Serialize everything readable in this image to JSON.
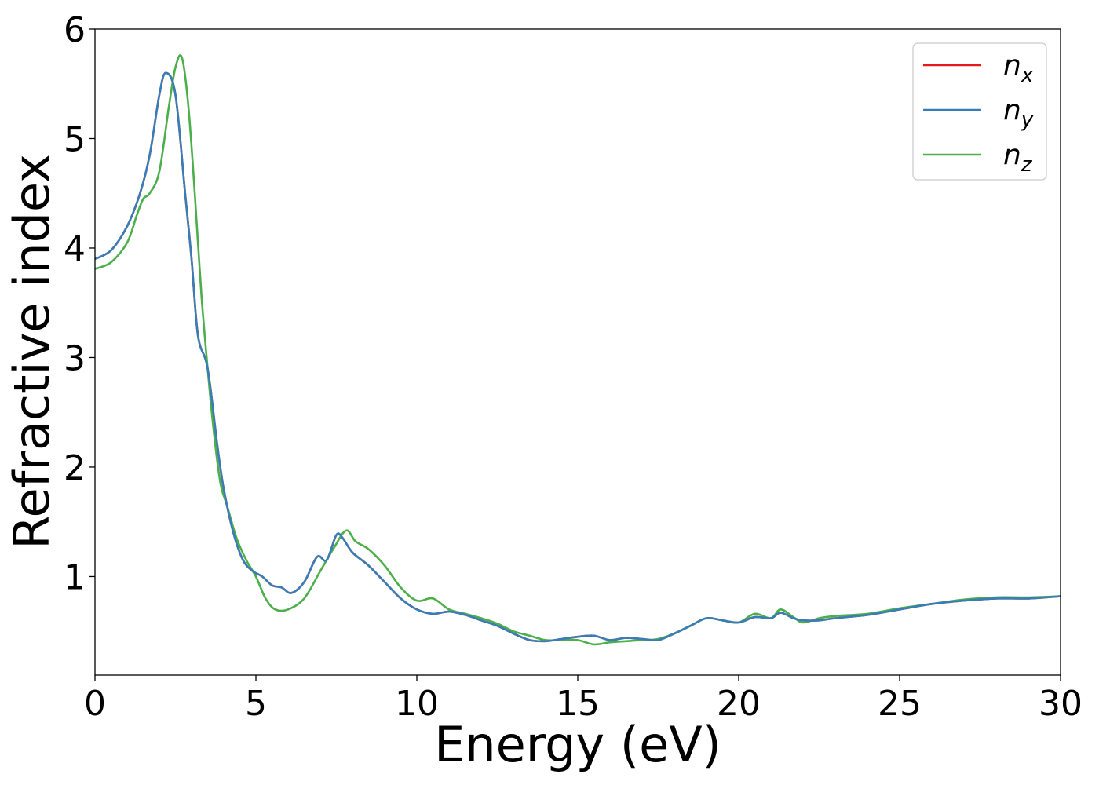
{
  "chart_data": {
    "type": "line",
    "xlabel": "Energy (eV)",
    "ylabel": "Refractive index",
    "xlim": [
      0,
      30
    ],
    "ylim": [
      0.1,
      6
    ],
    "xticks": [
      0,
      5,
      10,
      15,
      20,
      25,
      30
    ],
    "yticks": [
      1,
      2,
      3,
      4,
      5,
      6
    ],
    "grid": false,
    "legend_position": "top-right",
    "series": [
      {
        "name": "n",
        "subscript": "x",
        "color": "#e41a1c",
        "x": [
          0,
          0.5,
          1.0,
          1.4,
          1.7,
          2.0,
          2.2,
          2.5,
          2.8,
          3.0,
          3.2,
          3.5,
          3.8,
          4.0,
          4.3,
          4.6,
          4.9,
          5.2,
          5.5,
          5.8,
          6.1,
          6.5,
          6.9,
          7.2,
          7.5,
          7.7,
          8.0,
          8.5,
          9.0,
          9.5,
          10.0,
          10.5,
          11.0,
          11.5,
          12.0,
          12.5,
          13.0,
          13.5,
          14.0,
          14.5,
          15.0,
          15.5,
          16.0,
          16.5,
          17.0,
          17.5,
          18.0,
          18.5,
          19.0,
          19.5,
          20.0,
          20.5,
          21.0,
          21.3,
          21.7,
          22.0,
          22.5,
          23.0,
          24.0,
          25.0,
          26.0,
          27.0,
          28.0,
          29.0,
          30.0
        ],
        "y": [
          3.9,
          3.98,
          4.2,
          4.5,
          4.85,
          5.4,
          5.6,
          5.4,
          4.5,
          3.9,
          3.2,
          2.9,
          2.2,
          1.8,
          1.4,
          1.15,
          1.05,
          1.0,
          0.92,
          0.9,
          0.85,
          0.95,
          1.18,
          1.15,
          1.38,
          1.35,
          1.22,
          1.1,
          0.95,
          0.8,
          0.7,
          0.66,
          0.68,
          0.65,
          0.6,
          0.55,
          0.48,
          0.42,
          0.41,
          0.43,
          0.45,
          0.46,
          0.42,
          0.44,
          0.43,
          0.42,
          0.48,
          0.55,
          0.62,
          0.6,
          0.58,
          0.63,
          0.62,
          0.67,
          0.62,
          0.6,
          0.6,
          0.62,
          0.65,
          0.7,
          0.75,
          0.78,
          0.8,
          0.8,
          0.82
        ]
      },
      {
        "name": "n",
        "subscript": "y",
        "color": "#377eb8",
        "x": [
          0,
          0.5,
          1.0,
          1.4,
          1.7,
          2.0,
          2.2,
          2.5,
          2.8,
          3.0,
          3.2,
          3.5,
          3.8,
          4.0,
          4.3,
          4.6,
          4.9,
          5.2,
          5.5,
          5.8,
          6.1,
          6.5,
          6.9,
          7.2,
          7.5,
          7.7,
          8.0,
          8.5,
          9.0,
          9.5,
          10.0,
          10.5,
          11.0,
          11.5,
          12.0,
          12.5,
          13.0,
          13.5,
          14.0,
          14.5,
          15.0,
          15.5,
          16.0,
          16.5,
          17.0,
          17.5,
          18.0,
          18.5,
          19.0,
          19.5,
          20.0,
          20.5,
          21.0,
          21.3,
          21.7,
          22.0,
          22.5,
          23.0,
          24.0,
          25.0,
          26.0,
          27.0,
          28.0,
          29.0,
          30.0
        ],
        "y": [
          3.9,
          3.98,
          4.2,
          4.5,
          4.85,
          5.4,
          5.6,
          5.4,
          4.5,
          3.9,
          3.2,
          2.9,
          2.2,
          1.8,
          1.4,
          1.15,
          1.05,
          1.0,
          0.92,
          0.9,
          0.85,
          0.95,
          1.18,
          1.15,
          1.38,
          1.35,
          1.22,
          1.1,
          0.95,
          0.8,
          0.7,
          0.66,
          0.68,
          0.65,
          0.6,
          0.55,
          0.48,
          0.42,
          0.41,
          0.43,
          0.45,
          0.46,
          0.42,
          0.44,
          0.43,
          0.42,
          0.48,
          0.55,
          0.62,
          0.6,
          0.58,
          0.63,
          0.62,
          0.67,
          0.62,
          0.6,
          0.6,
          0.62,
          0.65,
          0.7,
          0.75,
          0.78,
          0.8,
          0.8,
          0.82
        ]
      },
      {
        "name": "n",
        "subscript": "z",
        "color": "#4daf4a",
        "x": [
          0,
          0.5,
          1.0,
          1.3,
          1.5,
          1.7,
          2.0,
          2.3,
          2.5,
          2.7,
          2.9,
          3.1,
          3.3,
          3.5,
          3.7,
          3.9,
          4.1,
          4.4,
          4.7,
          5.0,
          5.3,
          5.6,
          6.0,
          6.5,
          7.0,
          7.4,
          7.8,
          8.1,
          8.5,
          9.0,
          9.5,
          10.0,
          10.5,
          11.0,
          11.5,
          12.0,
          12.5,
          13.0,
          13.5,
          14.0,
          14.5,
          15.0,
          15.5,
          16.0,
          16.5,
          17.0,
          17.5,
          18.0,
          18.5,
          19.0,
          19.5,
          20.0,
          20.5,
          21.0,
          21.3,
          21.7,
          22.0,
          22.5,
          23.0,
          24.0,
          25.0,
          26.0,
          27.0,
          28.0,
          29.0,
          30.0
        ],
        "y": [
          3.81,
          3.87,
          4.05,
          4.3,
          4.45,
          4.5,
          4.7,
          5.3,
          5.65,
          5.74,
          5.3,
          4.5,
          3.6,
          2.9,
          2.3,
          1.85,
          1.65,
          1.35,
          1.15,
          1.0,
          0.8,
          0.7,
          0.7,
          0.8,
          1.05,
          1.25,
          1.42,
          1.32,
          1.25,
          1.1,
          0.9,
          0.78,
          0.8,
          0.7,
          0.66,
          0.62,
          0.57,
          0.5,
          0.46,
          0.42,
          0.42,
          0.42,
          0.38,
          0.4,
          0.41,
          0.42,
          0.43,
          0.48,
          0.55,
          0.62,
          0.6,
          0.58,
          0.66,
          0.62,
          0.7,
          0.63,
          0.58,
          0.62,
          0.64,
          0.66,
          0.71,
          0.75,
          0.79,
          0.81,
          0.81,
          0.82
        ]
      }
    ]
  }
}
